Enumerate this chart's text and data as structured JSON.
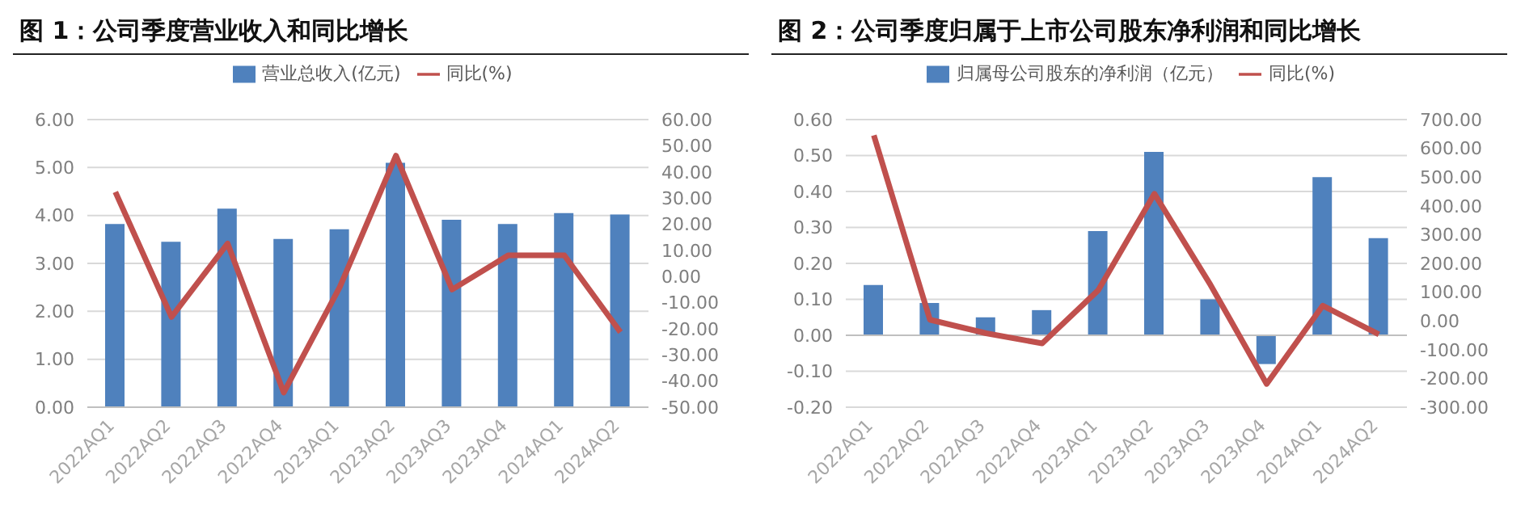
{
  "chart_data": [
    {
      "type": "bar",
      "title": "图 1：公司季度营业收入和同比增长",
      "categories": [
        "2022AQ1",
        "2022AQ2",
        "2022AQ3",
        "2022AQ4",
        "2023AQ1",
        "2023AQ2",
        "2023AQ3",
        "2023AQ4",
        "2024AQ1",
        "2024AQ2"
      ],
      "series": [
        {
          "name": "营业总收入(亿元)",
          "color": "#4f81bd",
          "values": [
            3.82,
            3.45,
            4.14,
            3.51,
            3.71,
            5.1,
            3.91,
            3.82,
            4.05,
            4.02
          ]
        },
        {
          "name": "同比(%)",
          "type": "line",
          "axis": "y2",
          "color": "#c0504d",
          "values": [
            32.3,
            -15.5,
            12.6,
            -44.4,
            -4,
            46.2,
            -5,
            8.1,
            8.1,
            -21.3
          ]
        }
      ],
      "ylim": [
        0,
        6
      ],
      "yticks": [
        {
          "value": 0,
          "label": "0.00"
        },
        {
          "value": 1,
          "label": "1.00"
        },
        {
          "value": 2,
          "label": "2.00"
        },
        {
          "value": 3,
          "label": "3.00"
        },
        {
          "value": 4,
          "label": "4.00"
        },
        {
          "value": 5,
          "label": "5.00"
        },
        {
          "value": 6,
          "label": "6.00"
        }
      ],
      "y2lim": [
        -50,
        60
      ],
      "y2ticks": [
        {
          "value": -50,
          "label": "-50.00"
        },
        {
          "value": -40,
          "label": "-40.00"
        },
        {
          "value": -30,
          "label": "-30.00"
        },
        {
          "value": -20,
          "label": "-20.00"
        },
        {
          "value": -10,
          "label": "-10.00"
        },
        {
          "value": 0,
          "label": "0.00"
        },
        {
          "value": 10,
          "label": "10.00"
        },
        {
          "value": 20,
          "label": "20.00"
        },
        {
          "value": 30,
          "label": "30.00"
        },
        {
          "value": 40,
          "label": "40.00"
        },
        {
          "value": 50,
          "label": "50.00"
        },
        {
          "value": 60,
          "label": "60.00"
        }
      ],
      "grid": "y",
      "legend": "top",
      "marker": "none"
    },
    {
      "type": "bar",
      "title": "图 2：公司季度归属于上市公司股东净利润和同比增长",
      "categories": [
        "2022AQ1",
        "2022AQ2",
        "2022AQ3",
        "2022AQ4",
        "2023AQ1",
        "2023AQ2",
        "2023AQ3",
        "2023AQ4",
        "2024AQ1",
        "2024AQ2"
      ],
      "series": [
        {
          "name": "归属母公司股东的净利润（亿元）",
          "color": "#4f81bd",
          "values": [
            0.14,
            0.09,
            0.05,
            0.07,
            0.29,
            0.51,
            0.1,
            -0.08,
            0.44,
            0.27
          ]
        },
        {
          "name": "同比(%)",
          "type": "line",
          "axis": "y2",
          "color": "#c0504d",
          "values": [
            645,
            4,
            -43,
            -78,
            107,
            442,
            125,
            -219,
            53,
            -47
          ]
        }
      ],
      "ylim": [
        -0.2,
        0.6
      ],
      "yticks": [
        {
          "value": -0.2,
          "label": "-0.20"
        },
        {
          "value": -0.1,
          "label": "-0.10"
        },
        {
          "value": 0,
          "label": "0.00"
        },
        {
          "value": 0.1,
          "label": "0.10"
        },
        {
          "value": 0.2,
          "label": "0.20"
        },
        {
          "value": 0.3,
          "label": "0.30"
        },
        {
          "value": 0.4,
          "label": "0.40"
        },
        {
          "value": 0.5,
          "label": "0.50"
        },
        {
          "value": 0.6,
          "label": "0.60"
        }
      ],
      "y2lim": [
        -300,
        700
      ],
      "y2ticks": [
        {
          "value": -300,
          "label": "-300.00"
        },
        {
          "value": -200,
          "label": "-200.00"
        },
        {
          "value": -100,
          "label": "-100.00"
        },
        {
          "value": 0,
          "label": "0.00"
        },
        {
          "value": 100,
          "label": "100.00"
        },
        {
          "value": 200,
          "label": "200.00"
        },
        {
          "value": 300,
          "label": "300.00"
        },
        {
          "value": 400,
          "label": "400.00"
        },
        {
          "value": 500,
          "label": "500.00"
        },
        {
          "value": 600,
          "label": "600.00"
        },
        {
          "value": 700,
          "label": "700.00"
        }
      ],
      "grid": "y",
      "legend": "top",
      "marker": "none"
    }
  ]
}
